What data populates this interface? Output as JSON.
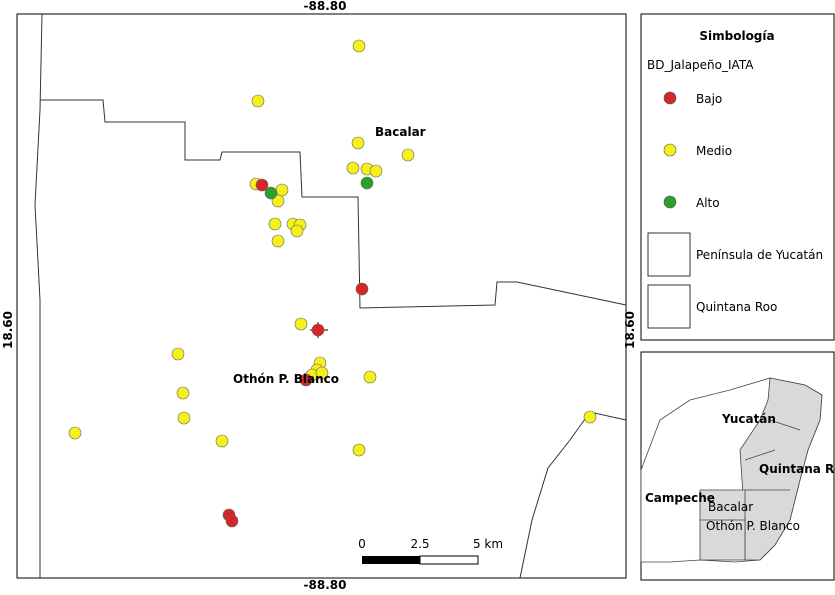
{
  "map": {
    "coords": {
      "top": "-88.80",
      "bottom": "-88.80",
      "left": "18.60",
      "right": "18.60"
    },
    "places": {
      "bacalar": "Bacalar",
      "othon": "Othón P. Blanco"
    },
    "scale": {
      "zero": "0",
      "mid": "2.5",
      "end": "5 km"
    }
  },
  "legend": {
    "title": "Simbología",
    "layer": "BD_Jalapeño_IATA",
    "items": [
      {
        "label": "Bajo",
        "color": "#d62728"
      },
      {
        "label": "Medio",
        "color": "#f5ef1a"
      },
      {
        "label": "Alto",
        "color": "#2ca02c"
      }
    ],
    "polygons": [
      "Península de Yucatán",
      "Quintana Roo"
    ]
  },
  "inset": {
    "labels": [
      "Yucatán",
      "Quintana Roo",
      "Campeche",
      "Bacalar",
      "Othón P. Blanco"
    ]
  }
}
